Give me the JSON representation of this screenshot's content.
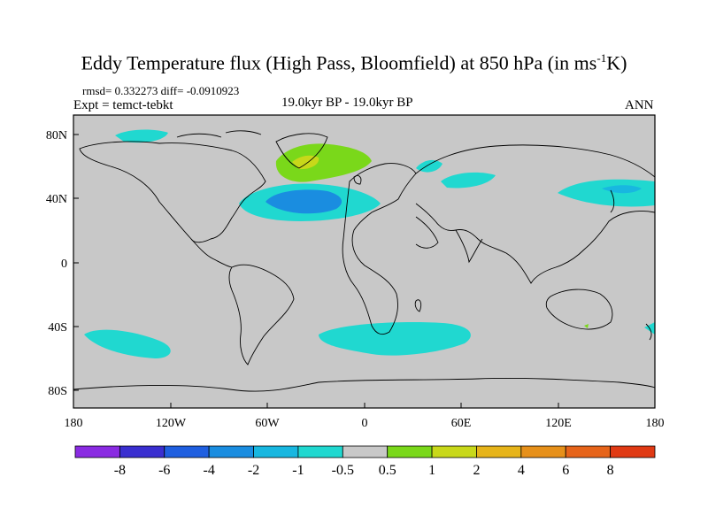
{
  "title": {
    "main": "Eddy Temperature flux (High Pass, Bloomfield) at 850 hPa (in ms",
    "sup": "-1",
    "tail": "K)"
  },
  "stats": "rmsd= 0.332273 diff= -0.0910923",
  "expt": "Expt = temct-tebkt",
  "period": "19.0kyr BP - 19.0kyr BP",
  "season": "ANN",
  "lat_ticks": [
    "80N",
    "40N",
    "0",
    "40S",
    "80S"
  ],
  "lon_ticks": [
    "180",
    "120W",
    "60W",
    "0",
    "60E",
    "120E",
    "180"
  ],
  "colorbar": {
    "labels": [
      "-8",
      "-6",
      "-4",
      "-2",
      "-1",
      "-0.5",
      "0.5",
      "1",
      "2",
      "4",
      "6",
      "8"
    ],
    "colors": [
      "#8a2be2",
      "#3a2fd0",
      "#1f5fe0",
      "#1a8de0",
      "#18b7e0",
      "#20d8d0",
      "#c8c8c8",
      "#7ad81a",
      "#c8d81a",
      "#e6b41a",
      "#e6901a",
      "#e6641a",
      "#e03a14"
    ]
  },
  "colors": {
    "land_ocean": "#c8c8c8",
    "coast": "#000000"
  }
}
